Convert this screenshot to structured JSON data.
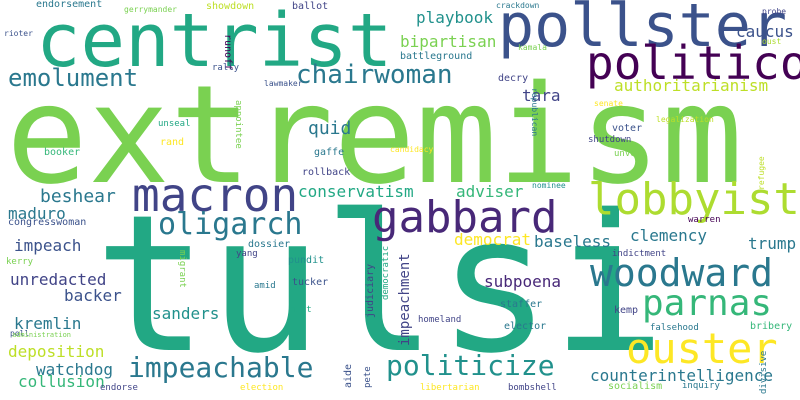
{
  "colors": {
    "c1": "#7ad151",
    "c2": "#22a884",
    "c3": "#2a788e",
    "c4": "#414487",
    "c5": "#440154",
    "c6": "#fde725",
    "c7": "#bddf26",
    "c8": "#35b779",
    "c9": "#21918c",
    "c10": "#3b528b",
    "c11": "#482878",
    "c12": "#addc30"
  },
  "words": {
    "extremism": "extremism",
    "tulsi": "tulsi",
    "centrist": "centrist",
    "pollster": "pollster",
    "politico": "politico",
    "macron": "macron",
    "gabbard": "gabbard",
    "lobbyist": "lobbyist",
    "woodward": "woodward",
    "parnas": "parnas",
    "ouster": "ouster",
    "oligarch": "oligarch",
    "chairwoman": "chairwoman",
    "emolument": "emolument",
    "impeachable": "impeachable",
    "politicize": "politicize",
    "endorsement": "endorsement",
    "gerrymander": "gerrymander",
    "showdown": "showdown",
    "ballot": "ballot",
    "crackdown": "crackdown",
    "probe": "probe",
    "rioter": "rioter",
    "playbook": "playbook",
    "bipartisan": "bipartisan",
    "caucus": "caucus",
    "kamala": "kamala",
    "battleground": "battleground",
    "runoff": "runoff",
    "rally": "rally",
    "lawmaker": "lawmaker",
    "decry": "decry",
    "oust": "oust",
    "tara": "tara",
    "authoritarianism": "authoritarianism",
    "quid": "quid",
    "senate": "senate",
    "legalization": "legalization",
    "unseal": "unseal",
    "republican": "republican",
    "voter": "voter",
    "shutdown": "shutdown",
    "rand": "rand",
    "appointee": "appointee",
    "gaffe": "gaffe",
    "booker": "booker",
    "candidacy": "candidacy",
    "unveil": "unveil",
    "rollback": "rollback",
    "refugee": "refugee",
    "beshear": "beshear",
    "conservatism": "conservatism",
    "adviser": "adviser",
    "nominee": "nominee",
    "maduro": "maduro",
    "congresswoman": "congresswoman",
    "warren": "warren",
    "democrat": "democrat",
    "clemency": "clemency",
    "impeach": "impeach",
    "dossier": "dossier",
    "baseless": "baseless",
    "trump": "trump",
    "kerry": "kerry",
    "yang": "yang",
    "indictment": "indictment",
    "unredacted": "unredacted",
    "pundit": "pundit",
    "migrant": "migrant",
    "subpoena": "subpoena",
    "backer": "backer",
    "tucker": "tucker",
    "amid": "amid",
    "democratic": "democratic",
    "impeachment": "impeachment",
    "sanders": "sanders",
    "judiciary": "judiciary",
    "mitt": "mitt",
    "staffer": "staffer",
    "kremlin": "kremlin",
    "poll": "poll",
    "kemp": "kemp",
    "homeland": "homeland",
    "elector": "elector",
    "falsehood": "falsehood",
    "bribery": "bribery",
    "administration": "administration",
    "deposition": "deposition",
    "divisive": "divisive",
    "watchdog": "watchdog",
    "aide": "aide",
    "pete": "pete",
    "counterintelligence": "counterintelligence",
    "collusion": "collusion",
    "endorse": "endorse",
    "election": "election",
    "libertarian": "libertarian",
    "bombshell": "bombshell",
    "socialism": "socialism",
    "inquiry": "inquiry"
  }
}
